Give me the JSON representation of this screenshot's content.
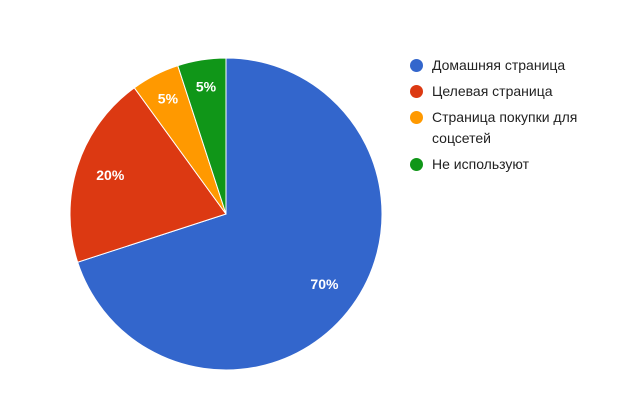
{
  "chart_data": {
    "type": "pie",
    "categories": [
      "Домашняя страница",
      "Целевая страница",
      "Страница покупки для соцсетей",
      "Не используют"
    ],
    "values": [
      70,
      20,
      5,
      5
    ],
    "value_labels": [
      "70%",
      "20%",
      "5%",
      "5%"
    ],
    "colors": [
      "#3366cc",
      "#dc3912",
      "#ff9900",
      "#109618"
    ],
    "legend": "right"
  }
}
